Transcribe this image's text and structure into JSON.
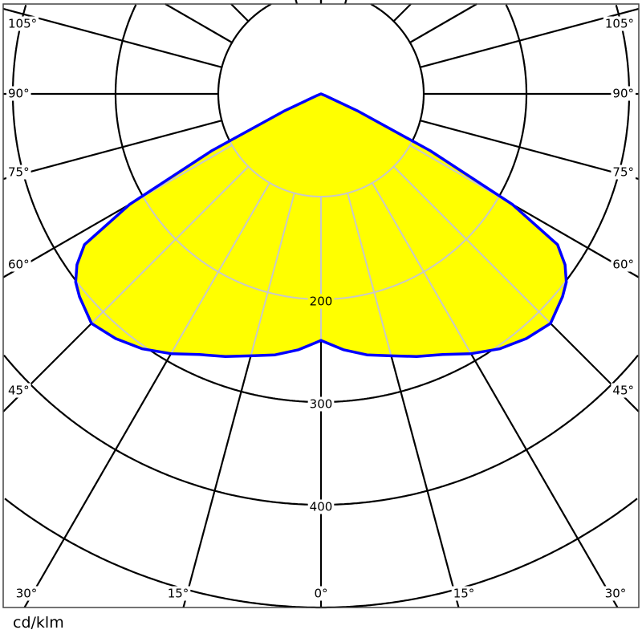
{
  "chart_data": {
    "type": "polar",
    "unit_label": "cd/klm",
    "radial_ticks": [
      100,
      200,
      300,
      400,
      500,
      600
    ],
    "radial_tick_labels": [
      "200",
      "300",
      "400"
    ],
    "angle_labels": [
      "0°",
      "15°",
      "30°",
      "45°",
      "60°",
      "75°",
      "90°",
      "105°"
    ],
    "symmetric": true,
    "series": [
      {
        "angles_deg": [
          0,
          5,
          10,
          15,
          20,
          25,
          30,
          35,
          40,
          45,
          50,
          52.5,
          55,
          57.5,
          60,
          62.5,
          65,
          67.5,
          70,
          180
        ],
        "values": [
          240,
          250,
          258,
          264,
          272,
          280,
          292,
          303,
          311,
          316,
          307,
          301,
          290,
          273,
          215,
          120,
          40,
          5,
          0,
          0
        ]
      }
    ],
    "colors": {
      "fill": "#ffff00",
      "outline": "#0000ff",
      "grid": "#000000",
      "grid_inside": "#c8c8c8"
    }
  }
}
